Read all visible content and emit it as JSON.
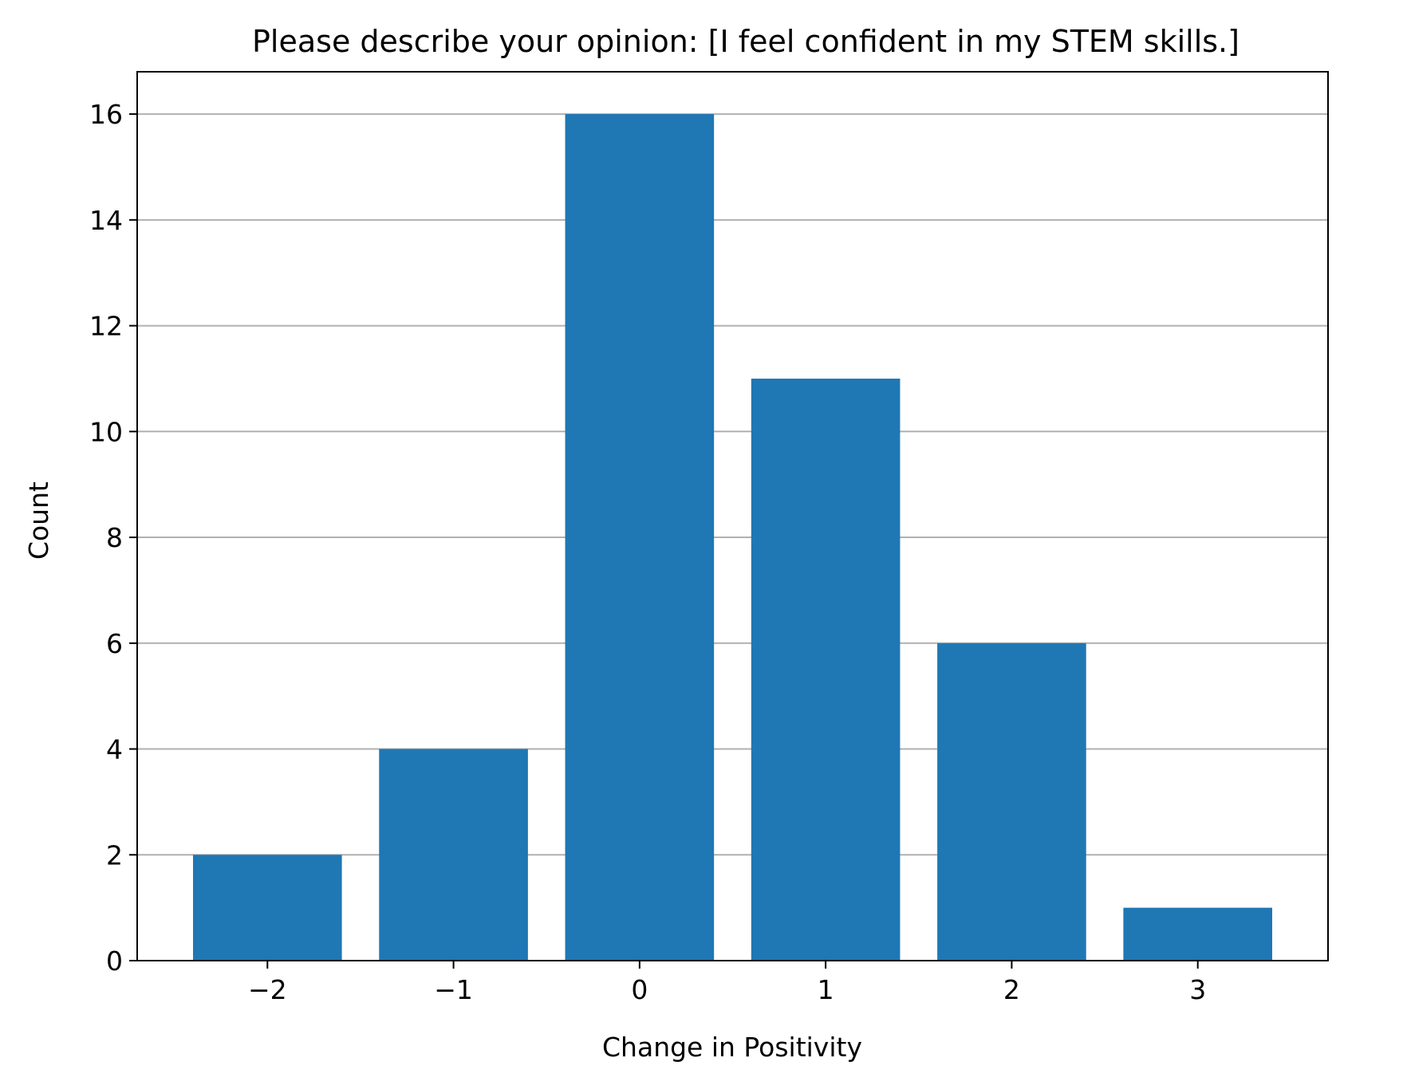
{
  "chart_data": {
    "type": "bar",
    "title": "Please describe your opinion: [I feel confident in my STEM skills.]",
    "xlabel": "Change in Positivity",
    "ylabel": "Count",
    "x": [
      -2,
      -1,
      0,
      1,
      2,
      3
    ],
    "values": [
      2,
      4,
      16,
      11,
      6,
      1
    ],
    "x_tick_labels": [
      "−2",
      "−1",
      "0",
      "1",
      "2",
      "3"
    ],
    "y_ticks": [
      0,
      2,
      4,
      6,
      8,
      10,
      12,
      14,
      16
    ],
    "xlim": [
      -2.7,
      3.7
    ],
    "ylim": [
      0,
      16.8
    ],
    "grid": "y",
    "bar_color": "#1f77b4",
    "grid_color": "#b0b0b0"
  }
}
